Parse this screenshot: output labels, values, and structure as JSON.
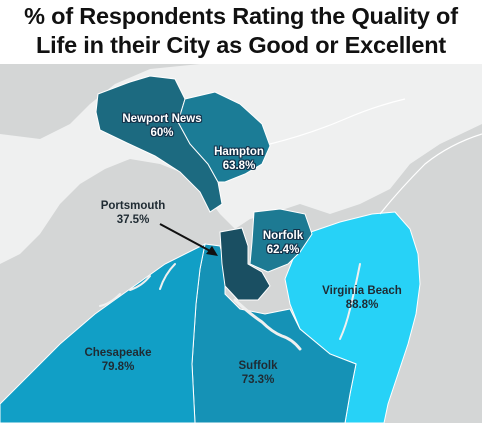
{
  "title": {
    "line1": "% of Respondents Rating the Quality of",
    "line2": "Life in their City as Good or Excellent"
  },
  "colors": {
    "background_land": "#d4d6d6",
    "water": "#eff0f0",
    "outline": "#ffffff",
    "scale_darkest": "#1c5d70",
    "scale_dark": "#1b7792",
    "scale_mid": "#0fa0c8",
    "scale_light": "#27d2f7"
  },
  "regions": [
    {
      "name": "Newport News",
      "value": "60%",
      "color": "#1c6a80"
    },
    {
      "name": "Hampton",
      "value": "63.8%",
      "color": "#1b7c96"
    },
    {
      "name": "Portsmouth",
      "value": "37.5%",
      "color": "#1a4f62"
    },
    {
      "name": "Norfolk",
      "value": "62.4%",
      "color": "#1d7a93"
    },
    {
      "name": "Virginia Beach",
      "value": "88.8%",
      "color": "#27d2f7"
    },
    {
      "name": "Chesapeake",
      "value": "79.8%",
      "color": "#119fc6"
    },
    {
      "name": "Suffolk",
      "value": "73.3%",
      "color": "#1592b6"
    }
  ]
}
